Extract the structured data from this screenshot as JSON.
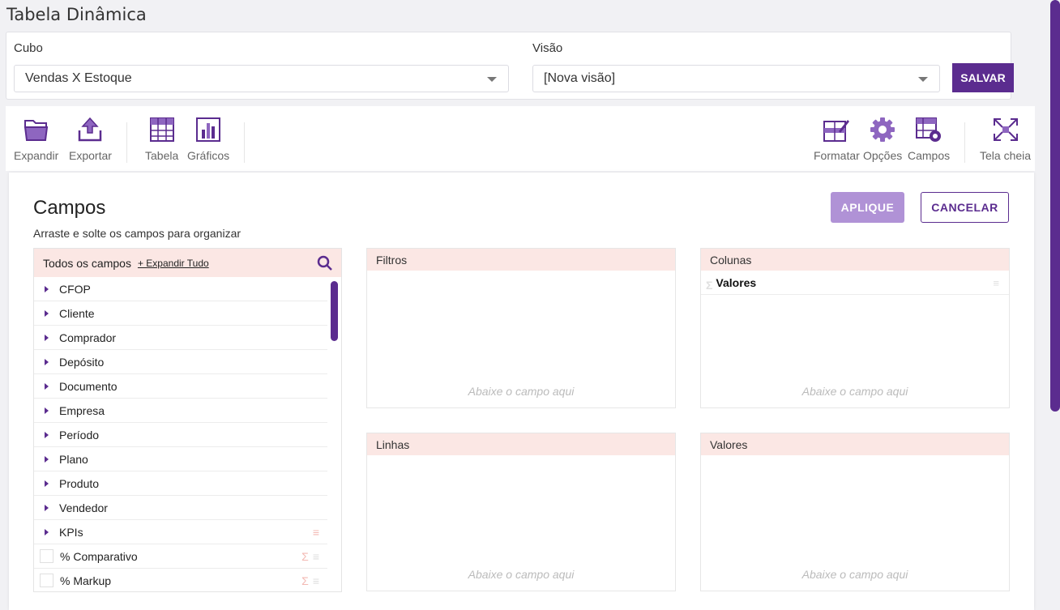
{
  "page": {
    "title": "Tabela Dinâmica"
  },
  "selectors": {
    "cubo_label": "Cubo",
    "cubo_value": "Vendas X Estoque",
    "visao_label": "Visão",
    "visao_value": "[Nova visão]",
    "save_label": "SALVAR"
  },
  "toolbar": {
    "expandir": "Expandir",
    "exportar": "Exportar",
    "tabela": "Tabela",
    "graficos": "Gráficos",
    "formatar": "Formatar",
    "opcoes": "Opções",
    "campos": "Campos",
    "tela_cheia": "Tela cheia"
  },
  "panel": {
    "title": "Campos",
    "subtitle": "Arraste e solte os campos para organizar",
    "apply_label": "APLIQUE",
    "cancel_label": "CANCELAR"
  },
  "fields": {
    "header": "Todos os campos",
    "expand_all": "+ Expandir Tudo",
    "items": [
      "CFOP",
      "Cliente",
      "Comprador",
      "Depósito",
      "Documento",
      "Empresa",
      "Período",
      "Plano",
      "Produto",
      "Vendedor",
      "KPIs"
    ],
    "measures": [
      "% Comparativo",
      "% Markup"
    ]
  },
  "zones": {
    "filtros": "Filtros",
    "colunas": "Colunas",
    "linhas": "Linhas",
    "valores": "Valores",
    "colunas_item": "Valores",
    "hint": "Abaixe o campo aqui"
  },
  "colors": {
    "accent": "#5b2c8f",
    "accent_light": "#b092d6",
    "zone_header": "#fbe7e4"
  }
}
